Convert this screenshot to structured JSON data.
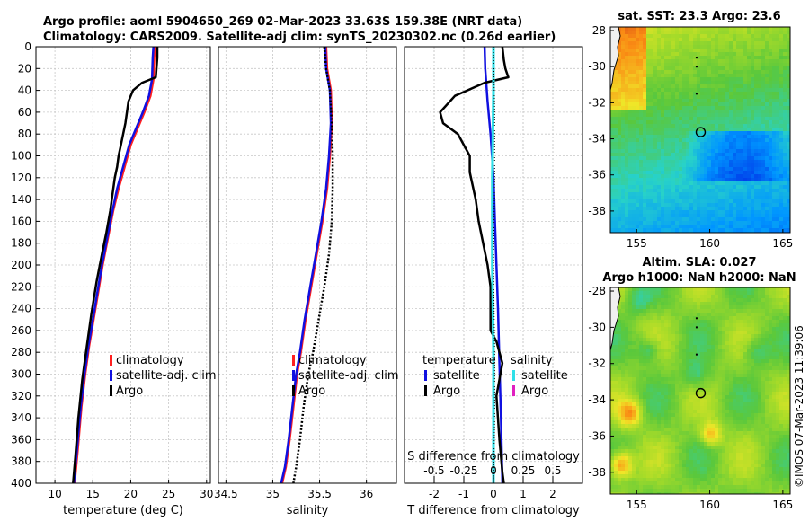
{
  "header": {
    "line1": "Argo profile: aoml 5904650_269 02-Mar-2023 33.63S 159.38E (NRT data)",
    "line2": "Climatology: CARS2009. Satellite-adj clim: synTS_20230302.nc (0.26d earlier)"
  },
  "copyright": "©IMOS 07-Mar-2023 11:39:06",
  "colors": {
    "climatology": "#ff2020",
    "satellite": "#1010e0",
    "argo": "#000000",
    "salinity_sat": "#30e0e8",
    "salinity_argo": "#e020c0",
    "grid": "#c8c8c8"
  },
  "chart_data": [
    {
      "id": "temperature",
      "type": "line",
      "xlabel": "temperature (deg C)",
      "ylabel": "",
      "xlim": [
        7.5,
        30.5
      ],
      "ylim": [
        0,
        400
      ],
      "y_reversed": true,
      "xticks": [
        10,
        15,
        20,
        25,
        30
      ],
      "yticks": [
        0,
        20,
        40,
        60,
        80,
        100,
        120,
        140,
        160,
        180,
        200,
        220,
        240,
        260,
        280,
        300,
        320,
        340,
        360,
        380,
        400
      ],
      "legend": {
        "position": "lower-middle",
        "entries": [
          {
            "label": "climatology",
            "color": "#ff2020"
          },
          {
            "label": "satellite-adj. clim",
            "color": "#1010e0"
          },
          {
            "label": "Argo",
            "color": "#000000"
          }
        ]
      },
      "series": [
        {
          "name": "climatology",
          "color": "#ff2020",
          "width": 2.5,
          "dash": "",
          "x": [
            23.2,
            23.1,
            23.0,
            22.6,
            21.8,
            20.9,
            20.0,
            19.2,
            18.4,
            17.7,
            17.0,
            16.3,
            15.7,
            15.1,
            14.5,
            14.0,
            13.5,
            13.0,
            12.6
          ],
          "y": [
            0,
            10,
            30,
            45,
            60,
            75,
            90,
            110,
            130,
            150,
            175,
            200,
            225,
            250,
            275,
            300,
            330,
            370,
            400
          ]
        },
        {
          "name": "satellite-adj. clim",
          "color": "#1010e0",
          "width": 2.5,
          "dash": "",
          "x": [
            23.0,
            22.9,
            22.8,
            22.4,
            21.6,
            20.7,
            19.8,
            19.0,
            18.2,
            17.6,
            16.9,
            16.2,
            15.6,
            15.0,
            14.4,
            13.9,
            13.4,
            12.9,
            12.5
          ],
          "y": [
            0,
            10,
            30,
            45,
            60,
            75,
            90,
            110,
            130,
            150,
            175,
            200,
            225,
            250,
            275,
            300,
            330,
            370,
            400
          ]
        },
        {
          "name": "Argo",
          "color": "#000000",
          "width": 2.5,
          "dash": "",
          "x": [
            23.5,
            23.5,
            23.3,
            21.5,
            20.3,
            19.7,
            19.5,
            19.3,
            19.0,
            18.7,
            18.4,
            18.2,
            17.9,
            17.6,
            17.3,
            16.8,
            16.2,
            15.5,
            14.8,
            14.2,
            13.6,
            13.1,
            12.7,
            12.4
          ],
          "y": [
            0,
            10,
            28,
            33,
            40,
            50,
            60,
            70,
            80,
            90,
            100,
            110,
            120,
            135,
            150,
            170,
            190,
            215,
            245,
            275,
            305,
            340,
            375,
            400
          ]
        }
      ]
    },
    {
      "id": "salinity",
      "type": "line",
      "xlabel": "salinity",
      "ylabel": "",
      "xlim": [
        34.42,
        36.32
      ],
      "ylim": [
        0,
        400
      ],
      "y_reversed": true,
      "xticks": [
        34.5,
        35,
        35.5,
        36
      ],
      "legend": {
        "position": "lower-middle",
        "entries": [
          {
            "label": "climatology",
            "color": "#ff2020"
          },
          {
            "label": "satellite-adj. clim",
            "color": "#1010e0"
          },
          {
            "label": "Argo",
            "color": "#000000"
          }
        ]
      },
      "series": [
        {
          "name": "climatology",
          "color": "#ff2020",
          "width": 2.5,
          "dash": "",
          "x": [
            35.57,
            35.58,
            35.62,
            35.63,
            35.61,
            35.58,
            35.53,
            35.47,
            35.41,
            35.35,
            35.3,
            35.26,
            35.22,
            35.18,
            35.14,
            35.1
          ],
          "y": [
            0,
            20,
            40,
            70,
            100,
            130,
            160,
            190,
            220,
            250,
            280,
            300,
            330,
            360,
            385,
            400
          ]
        },
        {
          "name": "satellite-adj. clim",
          "color": "#1010e0",
          "width": 2.5,
          "dash": "",
          "x": [
            35.56,
            35.57,
            35.61,
            35.62,
            35.6,
            35.57,
            35.52,
            35.46,
            35.4,
            35.34,
            35.29,
            35.25,
            35.21,
            35.17,
            35.13,
            35.09
          ],
          "y": [
            0,
            20,
            40,
            70,
            100,
            130,
            160,
            190,
            220,
            250,
            280,
            300,
            330,
            360,
            385,
            400
          ]
        },
        {
          "name": "Argo",
          "color": "#000000",
          "width": 2.5,
          "dash": "2,2",
          "x": [
            35.55,
            35.57,
            35.61,
            35.63,
            35.64,
            35.64,
            35.63,
            35.6,
            35.55,
            35.49,
            35.43,
            35.38,
            35.33,
            35.29,
            35.25,
            35.22
          ],
          "y": [
            0,
            20,
            40,
            70,
            100,
            130,
            160,
            190,
            220,
            250,
            280,
            300,
            330,
            360,
            385,
            400
          ]
        }
      ]
    },
    {
      "id": "difference",
      "type": "line",
      "xlabel": "T difference from climatology",
      "xlabel_top": "S difference from climatology",
      "ylabel": "",
      "xlim": [
        -3,
        3
      ],
      "xlim_salinity": [
        -0.75,
        0.75
      ],
      "ylim": [
        0,
        400
      ],
      "y_reversed": true,
      "xticks": [
        -2,
        -1,
        0,
        1,
        2
      ],
      "xticks_salinity": [
        -0.5,
        -0.25,
        0,
        0.25,
        0.5
      ],
      "xticklabels_salinity": [
        "-0.5",
        "-0.25",
        "0",
        "0.25",
        "0.5"
      ],
      "legend": {
        "position": "lower-middle",
        "groups": [
          {
            "title": "temperature",
            "entries": [
              {
                "label": "satellite",
                "color": "#1010e0"
              },
              {
                "label": "Argo",
                "color": "#000000"
              }
            ]
          },
          {
            "title": "salinity",
            "entries": [
              {
                "label": "satellite",
                "color": "#30e0e8"
              },
              {
                "label": "Argo",
                "color": "#e020c0"
              }
            ]
          }
        ]
      },
      "series": [
        {
          "name": "T satellite",
          "color": "#1010e0",
          "width": 2.5,
          "dash": "",
          "x": [
            -0.3,
            -0.28,
            -0.2,
            -0.1,
            0.0,
            0.05,
            0.1,
            0.15,
            0.2,
            0.25,
            0.3
          ],
          "y": [
            0,
            20,
            50,
            80,
            120,
            160,
            200,
            240,
            290,
            340,
            400
          ]
        },
        {
          "name": "T Argo",
          "color": "#000000",
          "width": 2.5,
          "dash": "",
          "x": [
            0.3,
            0.35,
            0.4,
            0.5,
            -0.3,
            -1.3,
            -1.8,
            -1.7,
            -1.2,
            -1.0,
            -0.8,
            -0.8,
            -0.6,
            -0.5,
            -0.2,
            -0.1,
            -0.1,
            0.1,
            0.3,
            0.1,
            0.2,
            0.3,
            0.35
          ],
          "y": [
            0,
            12,
            20,
            28,
            33,
            45,
            60,
            70,
            80,
            90,
            100,
            115,
            140,
            160,
            200,
            220,
            260,
            270,
            290,
            320,
            360,
            390,
            400
          ]
        },
        {
          "name": "S satellite",
          "color": "#30e0e8",
          "width": 3,
          "dash": "",
          "x": [
            0.0,
            0.0,
            -0.01,
            -0.01,
            0.0,
            0.0,
            0.0
          ],
          "y": [
            0,
            40,
            120,
            200,
            280,
            340,
            400
          ]
        },
        {
          "name": "S Argo",
          "color": "#000000",
          "width": 1,
          "dash": "1,2",
          "x": [
            0.0,
            0.01,
            0.01,
            0.0,
            0.01,
            0.01,
            0.0
          ],
          "y": [
            0,
            60,
            120,
            200,
            280,
            340,
            400
          ]
        }
      ]
    },
    {
      "id": "sst_map",
      "type": "heatmap",
      "title": "sat. SST: 23.3 Argo: 23.6",
      "xlim": [
        153.2,
        165.5
      ],
      "ylim": [
        -39.2,
        -27.8
      ],
      "xticks": [
        155,
        160,
        165
      ],
      "yticks": [
        -28,
        -30,
        -32,
        -34,
        -36,
        -38
      ],
      "marker": {
        "lon": 159.38,
        "lat": -33.63
      }
    },
    {
      "id": "sla_map",
      "type": "heatmap",
      "title": "Altim. SLA: 0.027",
      "subtitle": "Argo h1000: NaN h2000: NaN",
      "xlim": [
        153.2,
        165.5
      ],
      "ylim": [
        -39.2,
        -27.8
      ],
      "xticks": [
        155,
        160,
        165
      ],
      "yticks": [
        -28,
        -30,
        -32,
        -34,
        -36,
        -38
      ],
      "marker": {
        "lon": 159.38,
        "lat": -33.63
      }
    }
  ]
}
